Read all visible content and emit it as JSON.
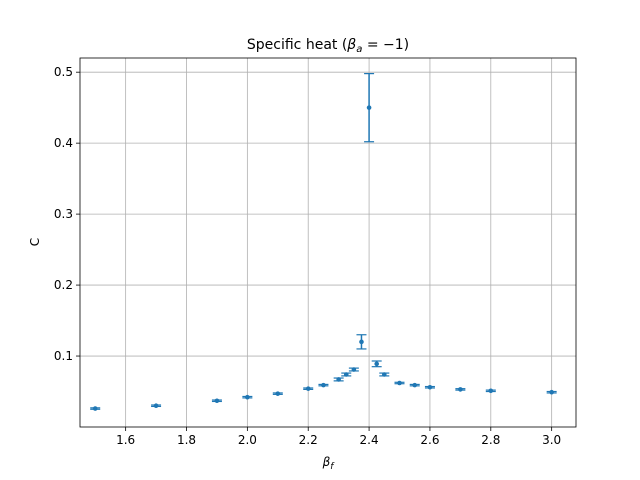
{
  "chart_data": {
    "type": "scatter",
    "title_prefix": "Specific heat (",
    "title_beta": "β",
    "title_beta_sub": "a",
    "title_suffix": " = −1)",
    "xlabel": "β",
    "xlabel_sub": "f",
    "ylabel": "C",
    "xlim": [
      1.45,
      3.08
    ],
    "ylim": [
      0.0,
      0.52
    ],
    "x_ticks": [
      1.6,
      1.8,
      2.0,
      2.2,
      2.4,
      2.6,
      2.8,
      3.0
    ],
    "x_tick_labels": [
      "1.6",
      "1.8",
      "2.0",
      "2.2",
      "2.4",
      "2.6",
      "2.8",
      "3.0"
    ],
    "y_ticks": [
      0.1,
      0.2,
      0.3,
      0.4,
      0.5
    ],
    "y_tick_labels": [
      "0.1",
      "0.2",
      "0.3",
      "0.4",
      "0.5"
    ],
    "grid": true,
    "series_color": "#1f77b4",
    "points": [
      {
        "x": 1.5,
        "y": 0.026,
        "err": 0.001
      },
      {
        "x": 1.7,
        "y": 0.03,
        "err": 0.001
      },
      {
        "x": 1.9,
        "y": 0.037,
        "err": 0.001
      },
      {
        "x": 2.0,
        "y": 0.042,
        "err": 0.001
      },
      {
        "x": 2.1,
        "y": 0.047,
        "err": 0.001
      },
      {
        "x": 2.2,
        "y": 0.054,
        "err": 0.001
      },
      {
        "x": 2.25,
        "y": 0.059,
        "err": 0.001
      },
      {
        "x": 2.3,
        "y": 0.067,
        "err": 0.002
      },
      {
        "x": 2.325,
        "y": 0.074,
        "err": 0.002
      },
      {
        "x": 2.35,
        "y": 0.081,
        "err": 0.002
      },
      {
        "x": 2.375,
        "y": 0.12,
        "err": 0.01
      },
      {
        "x": 2.4,
        "y": 0.45,
        "err": 0.048
      },
      {
        "x": 2.425,
        "y": 0.089,
        "err": 0.004
      },
      {
        "x": 2.45,
        "y": 0.074,
        "err": 0.002
      },
      {
        "x": 2.5,
        "y": 0.062,
        "err": 0.001
      },
      {
        "x": 2.55,
        "y": 0.059,
        "err": 0.001
      },
      {
        "x": 2.6,
        "y": 0.056,
        "err": 0.001
      },
      {
        "x": 2.7,
        "y": 0.053,
        "err": 0.001
      },
      {
        "x": 2.8,
        "y": 0.051,
        "err": 0.001
      },
      {
        "x": 3.0,
        "y": 0.049,
        "err": 0.001
      }
    ]
  }
}
